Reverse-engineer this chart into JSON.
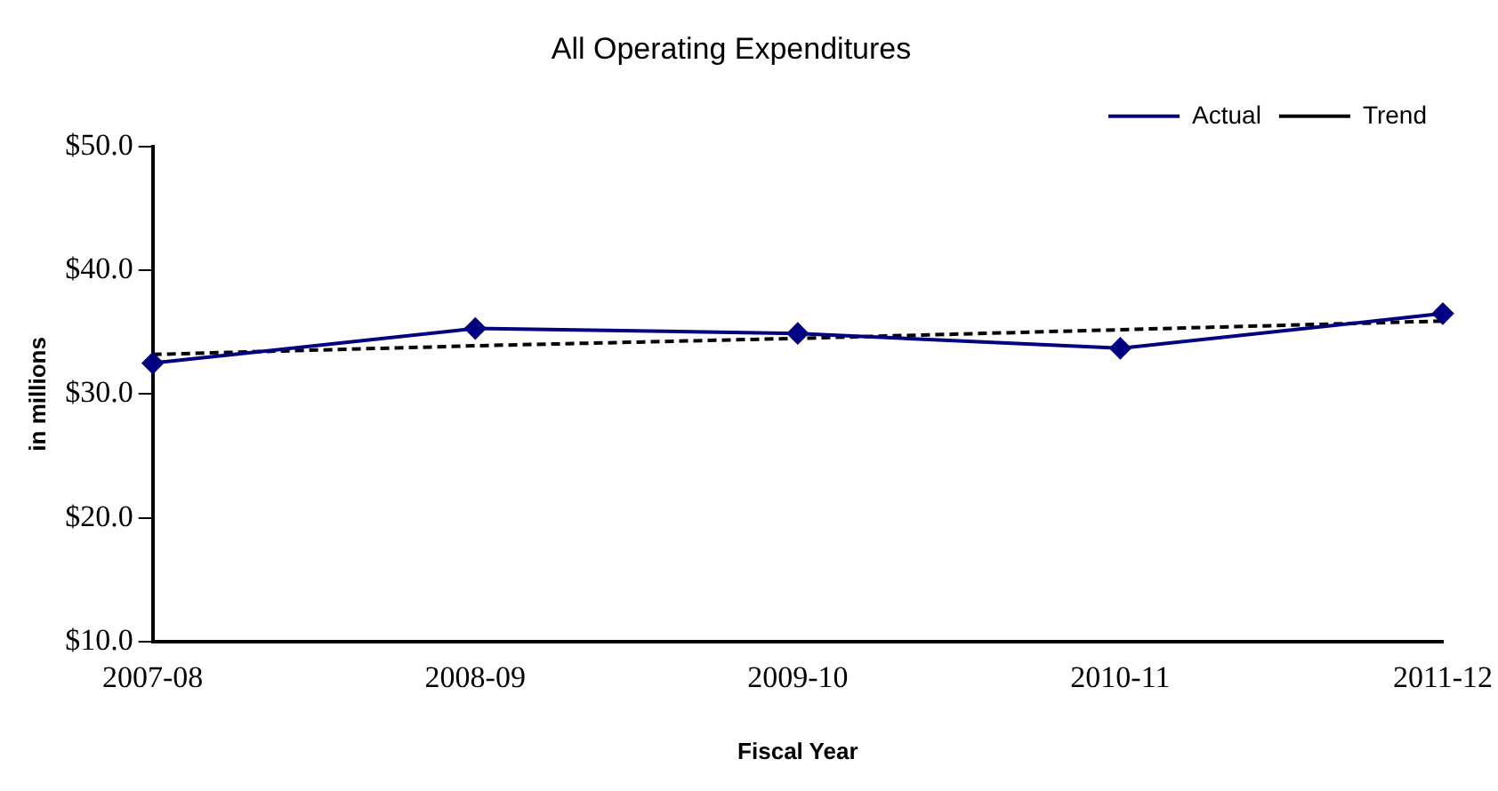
{
  "chart_data": {
    "type": "line",
    "title": "All Operating Expenditures",
    "xlabel": "Fiscal Year",
    "ylabel": "in millions",
    "categories": [
      "2007-08",
      "2008-09",
      "2009-10",
      "2010-11",
      "2011-12"
    ],
    "series": [
      {
        "name": "Actual",
        "color": "#000080",
        "values": [
          32.5,
          35.3,
          34.9,
          33.7,
          36.5
        ],
        "marker": "diamond",
        "line_style": "solid"
      },
      {
        "name": "Trend",
        "color": "#000000",
        "values": [
          33.2,
          33.9,
          34.5,
          35.2,
          35.9
        ],
        "marker": "none",
        "line_style": "dashed"
      }
    ],
    "ylim": [
      10,
      50
    ],
    "yticks": [
      {
        "value": 10,
        "label": "$10.0"
      },
      {
        "value": 20,
        "label": "$20.0"
      },
      {
        "value": 30,
        "label": "$30.0"
      },
      {
        "value": 40,
        "label": "$40.0"
      },
      {
        "value": 50,
        "label": "$50.0"
      }
    ],
    "grid": false,
    "legend": "top right"
  }
}
